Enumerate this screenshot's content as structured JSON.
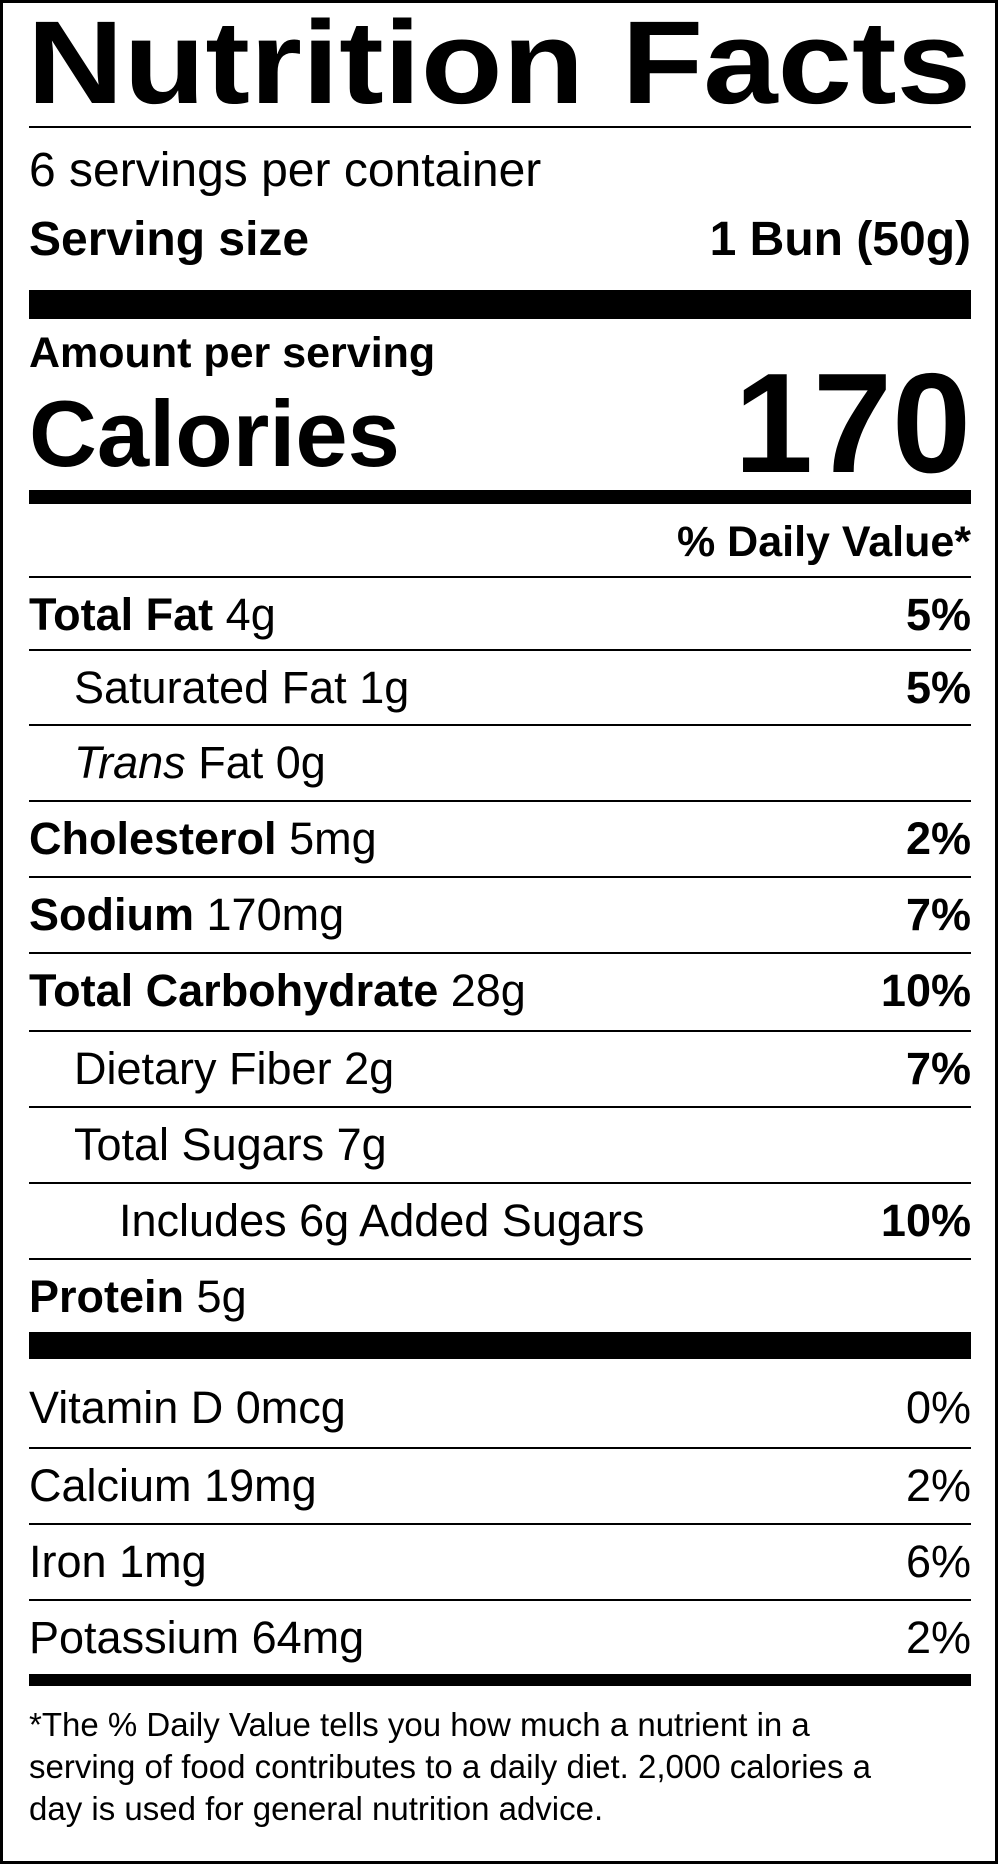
{
  "header": {
    "title": "Nutrition Facts",
    "servings": "6 servings per container",
    "serving_size_label": "Serving size",
    "serving_size_value": "1 Bun (50g)"
  },
  "calories": {
    "amount_label": "Amount per serving",
    "label": "Calories",
    "value": "170"
  },
  "daily_value_header": "% Daily Value*",
  "nutrients": [
    {
      "name": "Total Fat",
      "amount": "4g",
      "dv": "5%"
    },
    {
      "name": "Saturated Fat",
      "amount": "1g",
      "dv": "5%"
    },
    {
      "name_italic": "Trans",
      "name": "Fat",
      "amount": "0g"
    },
    {
      "name": "Cholesterol",
      "amount": "5mg",
      "dv": "2%"
    },
    {
      "name": "Sodium",
      "amount": "170mg",
      "dv": "7%"
    },
    {
      "name": "Total Carbohydrate",
      "amount": "28g",
      "dv": "10%"
    },
    {
      "name": "Dietary Fiber",
      "amount": "2g",
      "dv": "7%"
    },
    {
      "name": "Total Sugars",
      "amount": "7g"
    },
    {
      "name": "Includes 6g Added Sugars",
      "dv": "10%"
    },
    {
      "name": "Protein",
      "amount": "5g"
    }
  ],
  "vitamins": [
    {
      "name": "Vitamin D",
      "amount": "0mcg",
      "dv": "0%"
    },
    {
      "name": "Calcium",
      "amount": "19mg",
      "dv": "2%"
    },
    {
      "name": "Iron",
      "amount": "1mg",
      "dv": "6%"
    },
    {
      "name": "Potassium",
      "amount": "64mg",
      "dv": "2%"
    }
  ],
  "footnote": [
    "*The % Daily Value tells you how much a nutrient in a",
    "serving of food contributes to a daily diet. 2,000 calories a",
    "day is used for general nutrition advice."
  ]
}
